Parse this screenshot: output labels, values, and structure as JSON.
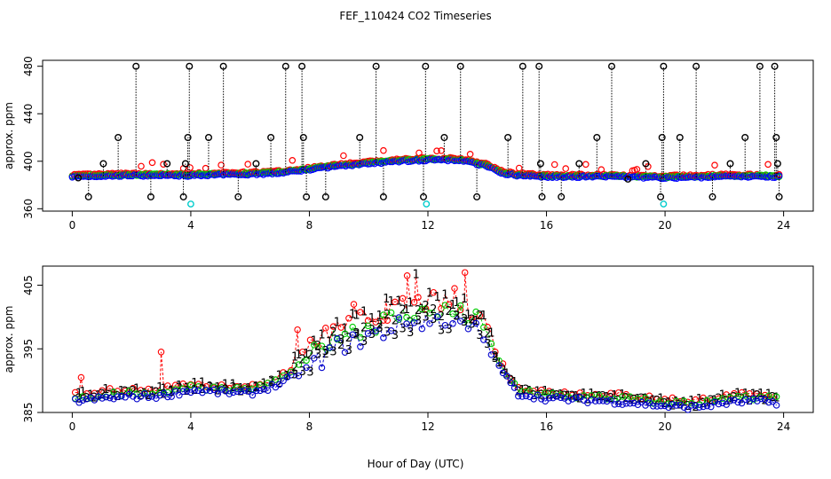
{
  "title": "FEF_110424  CO2 Timeseries",
  "xlabel": "Hour of Day (UTC)",
  "chart_data": [
    {
      "type": "scatter",
      "name": "top-panel",
      "ylabel": "approx. ppm",
      "xlim": [
        -1,
        25
      ],
      "ylim": [
        358,
        485
      ],
      "xticks": [
        0,
        4,
        8,
        12,
        16,
        20,
        24
      ],
      "yticks": [
        360,
        400,
        440,
        480
      ],
      "colors": {
        "raw": "#000000",
        "red": "#ff0000",
        "green": "#00cc00",
        "blue": "#0000ff",
        "cyan": "#00cccc"
      },
      "series": [
        {
          "name": "black-spikes",
          "color": "#000000",
          "x": [
            0.2,
            0.55,
            1.05,
            1.55,
            2.15,
            2.65,
            3.2,
            3.75,
            3.82,
            3.9,
            3.95,
            4.6,
            5.1,
            5.6,
            6.2,
            6.7,
            7.2,
            7.75,
            7.8,
            7.9,
            8.55,
            9.7,
            10.25,
            10.5,
            11.85,
            11.92,
            12.55,
            13.1,
            13.65,
            14.7,
            15.2,
            15.75,
            15.8,
            15.85,
            16.5,
            17.1,
            17.7,
            18.2,
            18.75,
            19.35,
            19.85,
            19.9,
            19.95,
            20.5,
            21.05,
            21.6,
            22.2,
            22.7,
            23.2,
            23.7,
            23.75,
            23.8,
            23.85
          ],
          "y": [
            386,
            370,
            398,
            420,
            480,
            370,
            398,
            370,
            398,
            420,
            480,
            420,
            480,
            370,
            398,
            420,
            480,
            480,
            420,
            370,
            370,
            420,
            480,
            370,
            370,
            480,
            420,
            480,
            370,
            420,
            480,
            480,
            398,
            370,
            370,
            398,
            420,
            480,
            385,
            398,
            370,
            420,
            480,
            420,
            480,
            370,
            398,
            420,
            480,
            480,
            420,
            398,
            370
          ]
        },
        {
          "name": "cyan-points",
          "color": "#00cccc",
          "x": [
            4.0,
            11.95,
            19.95
          ],
          "y": [
            364,
            364,
            364
          ]
        }
      ],
      "smooth": [
        [
          0,
          387
        ],
        [
          2,
          388
        ],
        [
          3,
          388
        ],
        [
          4,
          388
        ],
        [
          6,
          389
        ],
        [
          7,
          390
        ],
        [
          8,
          393
        ],
        [
          9,
          396
        ],
        [
          10,
          398
        ],
        [
          11,
          400
        ],
        [
          12,
          401
        ],
        [
          13,
          401
        ],
        [
          14,
          396
        ],
        [
          14.5,
          390
        ],
        [
          15,
          388
        ],
        [
          16,
          387
        ],
        [
          18,
          387
        ],
        [
          20,
          386
        ],
        [
          22,
          387
        ],
        [
          24,
          387
        ]
      ],
      "offsets": {
        "red": 1.5,
        "green": 0.8,
        "blue": 0
      }
    },
    {
      "type": "scatter",
      "name": "bottom-panel",
      "ylabel": "approx. ppm",
      "xlim": [
        -1,
        25
      ],
      "ylim": [
        385,
        408
      ],
      "xticks": [
        0,
        4,
        8,
        12,
        16,
        20,
        24
      ],
      "yticks": [
        385,
        395,
        405
      ],
      "labels": {
        "red": "1",
        "green": "2",
        "blue": "3"
      },
      "smooth": [
        [
          0,
          386.8
        ],
        [
          1,
          387.2
        ],
        [
          2,
          387.5
        ],
        [
          3,
          387.6
        ],
        [
          4,
          388.5
        ],
        [
          5,
          388.2
        ],
        [
          6,
          388.0
        ],
        [
          7,
          389.5
        ],
        [
          8,
          392.0
        ],
        [
          9,
          395.5
        ],
        [
          10,
          397.0
        ],
        [
          11,
          398.5
        ],
        [
          12,
          399.5
        ],
        [
          13,
          399.0
        ],
        [
          13.8,
          397.5
        ],
        [
          14.3,
          393.0
        ],
        [
          15,
          388.0
        ],
        [
          16,
          387.2
        ],
        [
          17,
          387.0
        ],
        [
          18,
          386.8
        ],
        [
          19,
          386.5
        ],
        [
          20,
          386.0
        ],
        [
          21,
          385.8
        ],
        [
          22,
          386.5
        ],
        [
          23,
          386.8
        ],
        [
          24,
          386.5
        ]
      ],
      "offsets": {
        "red": 3.0,
        "green": 1.6,
        "blue": 0
      },
      "red_spikes": [
        [
          0.3,
          390.5
        ],
        [
          3.0,
          394.5
        ],
        [
          7.6,
          398.0
        ],
        [
          9.5,
          402.0
        ],
        [
          10.6,
          403.0
        ],
        [
          11.3,
          406.5
        ],
        [
          11.6,
          406.8
        ],
        [
          13.25,
          407.0
        ],
        [
          12.9,
          404.5
        ]
      ]
    }
  ]
}
